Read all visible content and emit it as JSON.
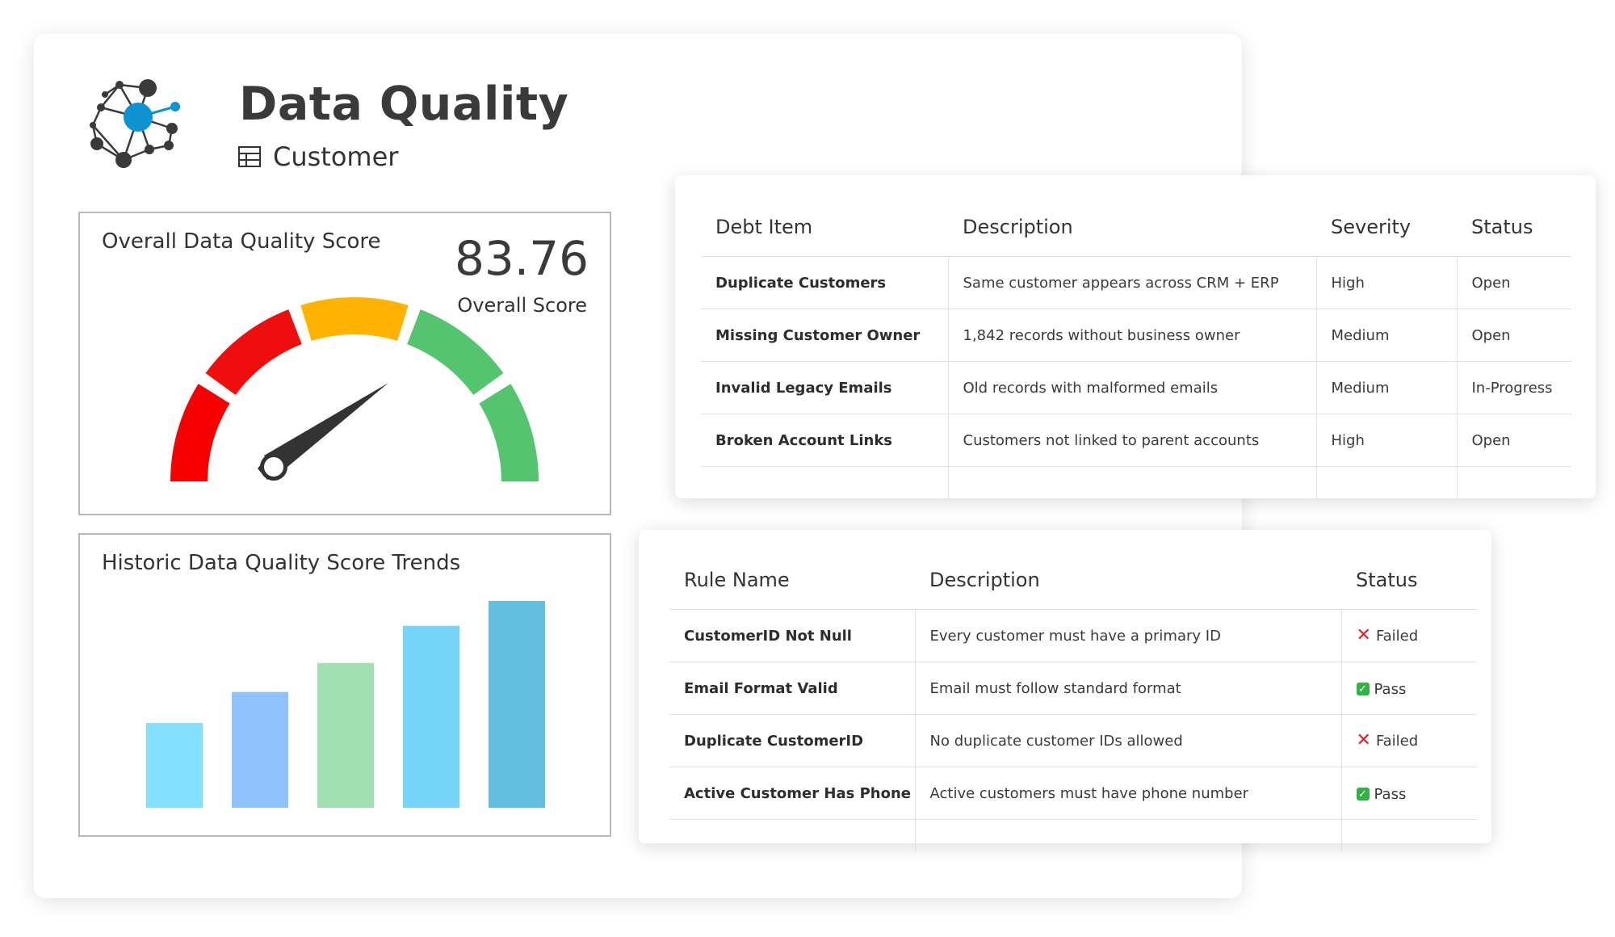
{
  "app": {
    "title": "Data Quality",
    "subtitle": "Customer",
    "subtitle_icon": "table-icon",
    "logo_icon": "network-logo-icon"
  },
  "score_panel": {
    "title": "Overall Data Quality Score",
    "score_value": "83.76",
    "score_label": "Overall Score",
    "gauge": {
      "segments": [
        {
          "color": "#f70000"
        },
        {
          "color": "#ee0e0e"
        },
        {
          "color": "#ffb200"
        },
        {
          "color": "#55c46e"
        },
        {
          "color": "#55c46e"
        }
      ],
      "needle_color": "#333333"
    }
  },
  "trend_panel": {
    "title": "Historic Data Quality Score Trends",
    "chart_data": {
      "type": "bar",
      "categories": [
        "",
        "",
        "",
        "",
        ""
      ],
      "values": [
        41,
        56,
        70,
        88,
        100
      ],
      "colors": [
        "#84e0ff",
        "#8fc2fa",
        "#a0dfb0",
        "#75d4f7",
        "#62bfe0"
      ],
      "title": "Historic Data Quality Score Trends",
      "xlabel": "",
      "ylabel": "",
      "ylim": [
        0,
        100
      ],
      "grid": false
    }
  },
  "debt_table": {
    "headers": [
      "Debt Item",
      "Description",
      "Severity",
      "Status"
    ],
    "rows": [
      [
        "Duplicate Customers",
        "Same customer appears across CRM + ERP",
        "High",
        "Open"
      ],
      [
        "Missing Customer Owner",
        "1,842 records without business owner",
        "Medium",
        "Open"
      ],
      [
        "Invalid Legacy Emails",
        "Old records with malformed emails",
        "Medium",
        "In-Progress"
      ],
      [
        "Broken Account Links",
        "Customers not linked to parent accounts",
        "High",
        "Open"
      ]
    ]
  },
  "rules_table": {
    "headers": [
      "Rule Name",
      "Description",
      "Status"
    ],
    "rows": [
      {
        "name": "CustomerID Not Null",
        "description": "Every customer must have a primary ID",
        "status": "Failed",
        "status_icon": "cross-icon"
      },
      {
        "name": "Email Format Valid",
        "description": "Email must follow standard format",
        "status": "Pass",
        "status_icon": "check-icon"
      },
      {
        "name": "Duplicate CustomerID",
        "description": "No duplicate customer IDs allowed",
        "status": "Failed",
        "status_icon": "cross-icon"
      },
      {
        "name": "Active Customer Has Phone",
        "description": "Active customers must have phone number",
        "status": "Pass",
        "status_icon": "check-icon"
      }
    ]
  }
}
